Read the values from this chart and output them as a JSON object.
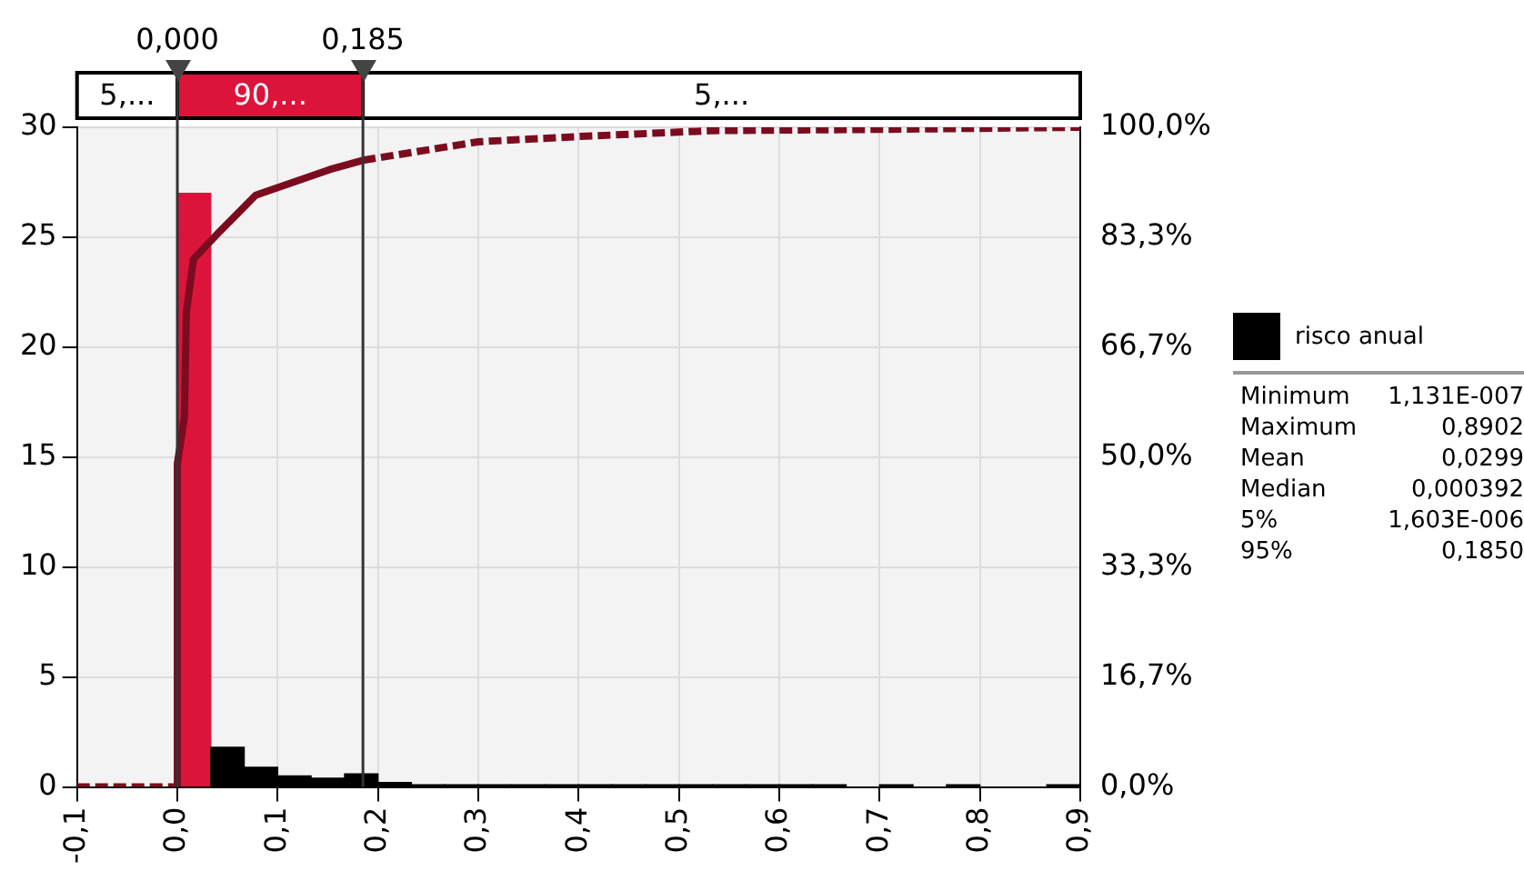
{
  "chart_data": {
    "type": "histogram",
    "bins": [
      0,
      0.0333,
      0.0667,
      0.1,
      0.1333,
      0.1667,
      0.2,
      0.2333,
      0.2667,
      0.3,
      0.3333,
      0.3667,
      0.4,
      0.4333,
      0.4667,
      0.5,
      0.5333,
      0.5667,
      0.6,
      0.6333,
      0.6667,
      0.7,
      0.7333,
      0.7667,
      0.8,
      0.8333,
      0.8667,
      0.9
    ],
    "series": [
      {
        "name": "risco anual",
        "color": "#000000",
        "colors": [
          "#dc143c",
          "#000000",
          "#000000",
          "#000000",
          "#000000",
          "#000000",
          "#000000",
          "#000000",
          "#000000",
          "#000000",
          "#000000",
          "#000000",
          "#000000",
          "#000000",
          "#000000",
          "#000000",
          "#000000",
          "#000000",
          "#000000",
          "#000000",
          "#000000",
          "#000000",
          "#000000",
          "#000000",
          "#000000",
          "#000000",
          "#000000"
        ],
        "values": [
          27,
          1.8,
          0.9,
          0.5,
          0.4,
          0.6,
          0.2,
          0.1,
          0.1,
          0.1,
          0.1,
          0.1,
          0.1,
          0.1,
          0.1,
          0.1,
          0.1,
          0.1,
          0.1,
          0.1,
          0,
          0.1,
          0,
          0.1,
          0,
          0,
          0.1
        ]
      },
      {
        "type": "line",
        "axis": "y2",
        "color": "#7b0c1f",
        "line_style": "dashed",
        "x": [
          -0.1,
          0
        ],
        "values": [
          0,
          0
        ]
      },
      {
        "type": "line",
        "axis": "y2",
        "color": "#7b0c1f",
        "line_style": "solid",
        "x": [
          0,
          0,
          0.007,
          0.009,
          0.016,
          0.041,
          0.078,
          0.152,
          0.185
        ],
        "values": [
          0,
          49,
          56,
          72,
          80,
          84,
          89.7,
          93.6,
          95
        ]
      },
      {
        "type": "line",
        "axis": "y2",
        "color": "#7b0c1f",
        "line_style": "dashed",
        "x": [
          0.185,
          0.3,
          0.4,
          0.535,
          0.71,
          0.9
        ],
        "values": [
          95,
          97.8,
          98.6,
          99.5,
          99.7,
          100
        ]
      }
    ],
    "xlim": [
      -0.1,
      0.9
    ],
    "xticks": [
      {
        "value": -0.1,
        "label": "-0,1"
      },
      {
        "value": 0,
        "label": "0,0"
      },
      {
        "value": 0.1,
        "label": "0,1"
      },
      {
        "value": 0.2,
        "label": "0,2"
      },
      {
        "value": 0.3,
        "label": "0,3"
      },
      {
        "value": 0.4,
        "label": "0,4"
      },
      {
        "value": 0.5,
        "label": "0,5"
      },
      {
        "value": 0.6,
        "label": "0,6"
      },
      {
        "value": 0.7,
        "label": "0,7"
      },
      {
        "value": 0.8,
        "label": "0,8"
      },
      {
        "value": 0.9,
        "label": "0,9"
      }
    ],
    "ylim": [
      0,
      30
    ],
    "yticks": [
      0,
      5,
      10,
      15,
      20,
      25,
      30
    ],
    "y2lim": [
      0,
      100
    ],
    "y2ticks": [
      {
        "value": 0,
        "label": "0,0%"
      },
      {
        "value": 16.7,
        "label": "16,7%"
      },
      {
        "value": 33.3,
        "label": "33,3%"
      },
      {
        "value": 50,
        "label": "50,0%"
      },
      {
        "value": 66.7,
        "label": "66,7%"
      },
      {
        "value": 83.3,
        "label": "83,3%"
      },
      {
        "value": 100,
        "label": "100,0%"
      }
    ],
    "ref_lines": [
      {
        "axis": "x",
        "value": 0,
        "label": "0,000",
        "color": "#333333"
      },
      {
        "axis": "x",
        "value": 0.185,
        "label": "0,185",
        "color": "#333333"
      }
    ],
    "annotations": [
      "5,...",
      "90,...",
      "5,...",
      "Minimum",
      "1,131E-007",
      "Maximum",
      "0,8902",
      "Mean",
      "0,0299",
      "Median",
      "0,000392",
      "5%",
      "1,603E-006",
      "95%",
      "0,1850"
    ],
    "grid": true,
    "legend": "right",
    "marker": "none"
  }
}
